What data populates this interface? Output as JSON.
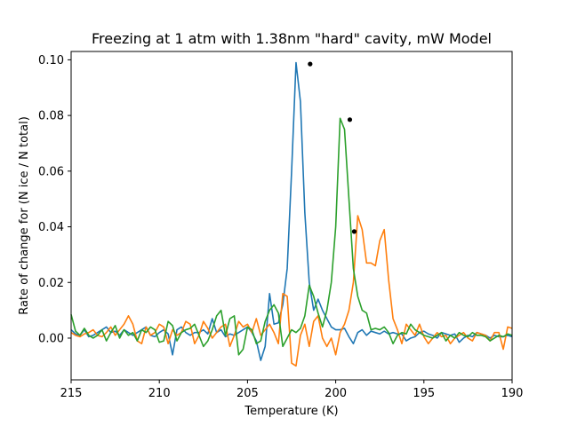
{
  "chart_data": {
    "type": "line",
    "title": "Freezing at 1 atm with 1.38nm \"hard\" cavity, mW Model",
    "xlabel": "Temperature (K)",
    "ylabel": "Rate of change for (N ice / N total)",
    "xlim": [
      215,
      190
    ],
    "ylim": [
      -0.015,
      0.103
    ],
    "x_ticks": [
      215,
      210,
      205,
      200,
      195,
      190
    ],
    "y_ticks": [
      0.0,
      0.02,
      0.04,
      0.06,
      0.08,
      0.1
    ],
    "x_tick_labels": [
      "215",
      "210",
      "205",
      "200",
      "195",
      "190"
    ],
    "y_tick_labels": [
      "0.00",
      "0.02",
      "0.04",
      "0.06",
      "0.08",
      "0.10"
    ],
    "grid": false,
    "legend": "none",
    "series": [
      {
        "color": "#1f77b4",
        "x": [
          215,
          214.75,
          214.5,
          214.25,
          214,
          213.75,
          213.5,
          213.25,
          213,
          212.75,
          212.5,
          212.25,
          212,
          211.75,
          211.5,
          211.25,
          211,
          210.75,
          210.5,
          210.25,
          210,
          209.75,
          209.5,
          209.25,
          209,
          208.75,
          208.5,
          208.25,
          208,
          207.75,
          207.5,
          207.25,
          207,
          206.75,
          206.5,
          206.25,
          206,
          205.75,
          205.5,
          205.25,
          205,
          204.75,
          204.5,
          204.25,
          204,
          203.75,
          203.5,
          203.25,
          203,
          202.75,
          202.5,
          202.25,
          202,
          201.75,
          201.5,
          201.25,
          201,
          200.75,
          200.5,
          200.25,
          200,
          199.75,
          199.5,
          199.25,
          199,
          198.75,
          198.5,
          198.25,
          198,
          197.75,
          197.5,
          197.25,
          197,
          196.75,
          196.5,
          196.25,
          196,
          195.75,
          195.5,
          195.25,
          195,
          194.75,
          194.5,
          194.25,
          194,
          193.75,
          193.5,
          193.25,
          193,
          192.75,
          192.5,
          192.25,
          192,
          191.75,
          191.5,
          191.25,
          191,
          190.75,
          190.5,
          190.25,
          190
        ],
        "y": [
          0.003,
          0.0015,
          0.001,
          0.003,
          0.0005,
          0.001,
          0.002,
          0.003,
          0.004,
          0.002,
          0.0025,
          0.001,
          0.003,
          0.002,
          0.001,
          0.002,
          0.003,
          0.004,
          0.001,
          0.0005,
          0.002,
          0.003,
          0.0015,
          -0.006,
          0.003,
          0.004,
          0.002,
          0.001,
          0.002,
          0.002,
          0.003,
          0.0015,
          0.007,
          0.002,
          0.003,
          0.0005,
          0.0015,
          0.001,
          0.002,
          0.003,
          0.004,
          0.002,
          -0.001,
          -0.008,
          -0.003,
          0.016,
          0.005,
          0.0055,
          0.012,
          0.025,
          0.06,
          0.099,
          0.085,
          0.045,
          0.02,
          0.01,
          0.014,
          0.01,
          0.007,
          0.004,
          0.003,
          0.003,
          0.0035,
          0.0005,
          -0.002,
          0.002,
          0.003,
          0.001,
          0.0025,
          0.002,
          0.0015,
          0.0025,
          0.0015,
          0.002,
          0.0015,
          0.0015,
          -0.001,
          0,
          0.0005,
          0.002,
          0.0025,
          0.0015,
          0.001,
          0,
          0.002,
          0.0015,
          0.001,
          0.0015,
          -0.0015,
          0,
          0.001,
          0.0005,
          0.002,
          0.0015,
          0.001,
          0,
          0.001,
          0.0005,
          0.0005,
          0.001,
          0.0005
        ]
      },
      {
        "color": "#ff7f0e",
        "x": [
          215,
          214.75,
          214.5,
          214.25,
          214,
          213.75,
          213.5,
          213.25,
          213,
          212.75,
          212.5,
          212.25,
          212,
          211.75,
          211.5,
          211.25,
          211,
          210.75,
          210.5,
          210.25,
          210,
          209.75,
          209.5,
          209.25,
          209,
          208.75,
          208.5,
          208.25,
          208,
          207.75,
          207.5,
          207.25,
          207,
          206.75,
          206.5,
          206.25,
          206,
          205.75,
          205.5,
          205.25,
          205,
          204.75,
          204.5,
          204.25,
          204,
          203.75,
          203.5,
          203.25,
          203,
          202.75,
          202.5,
          202.25,
          202,
          201.75,
          201.5,
          201.25,
          201,
          200.75,
          200.5,
          200.25,
          200,
          199.75,
          199.5,
          199.25,
          199,
          198.75,
          198.5,
          198.25,
          198,
          197.75,
          197.5,
          197.25,
          197,
          196.75,
          196.5,
          196.25,
          196,
          195.75,
          195.5,
          195.25,
          195,
          194.75,
          194.5,
          194.25,
          194,
          193.75,
          193.5,
          193.25,
          193,
          192.75,
          192.5,
          192.25,
          192,
          191.75,
          191.5,
          191.25,
          191,
          190.75,
          190.5,
          190.25,
          190
        ],
        "y": [
          0.002,
          0.001,
          0.0005,
          0.0015,
          0.002,
          0.003,
          0.001,
          0.0005,
          0.002,
          0.004,
          0.001,
          0.003,
          0.005,
          0.008,
          0.005,
          -0.001,
          -0.002,
          0.004,
          0.001,
          0.002,
          0.005,
          0.004,
          -0.002,
          0.003,
          0.001,
          0.002,
          0.006,
          0.005,
          -0.002,
          0.001,
          0.006,
          0.0035,
          0,
          0.002,
          0.004,
          0.005,
          -0.003,
          0.001,
          0.006,
          0.004,
          0.005,
          0.002,
          0.007,
          0.001,
          0.003,
          0.005,
          0.002,
          -0.002,
          0.016,
          0.015,
          -0.009,
          -0.01,
          0.001,
          0.005,
          -0.003,
          0.006,
          0.008,
          0,
          -0.003,
          0,
          -0.006,
          0.002,
          0.005,
          0.01,
          0.02,
          0.044,
          0.039,
          0.027,
          0.027,
          0.026,
          0.035,
          0.039,
          0.021,
          0.007,
          0.003,
          -0.002,
          0.005,
          0.003,
          0.001,
          0.005,
          0.0005,
          -0.002,
          0,
          0.002,
          0.0005,
          0.001,
          -0.002,
          0,
          0.001,
          0.002,
          0,
          -0.001,
          0.002,
          0.0015,
          0.001,
          -0.001,
          0.002,
          0.002,
          -0.004,
          0.004,
          0.0035
        ]
      },
      {
        "color": "#2ca02c",
        "x": [
          215,
          214.75,
          214.5,
          214.25,
          214,
          213.75,
          213.5,
          213.25,
          213,
          212.75,
          212.5,
          212.25,
          212,
          211.75,
          211.5,
          211.25,
          211,
          210.75,
          210.5,
          210.25,
          210,
          209.75,
          209.5,
          209.25,
          209,
          208.75,
          208.5,
          208.25,
          208,
          207.75,
          207.5,
          207.25,
          207,
          206.75,
          206.5,
          206.25,
          206,
          205.75,
          205.5,
          205.25,
          205,
          204.75,
          204.5,
          204.25,
          204,
          203.75,
          203.5,
          203.25,
          203,
          202.75,
          202.5,
          202.25,
          202,
          201.75,
          201.5,
          201.25,
          201,
          200.75,
          200.5,
          200.25,
          200,
          199.75,
          199.5,
          199.25,
          199,
          198.75,
          198.5,
          198.25,
          198,
          197.75,
          197.5,
          197.25,
          197,
          196.75,
          196.5,
          196.25,
          196,
          195.75,
          195.5,
          195.25,
          195,
          194.75,
          194.5,
          194.25,
          194,
          193.75,
          193.5,
          193.25,
          193,
          192.75,
          192.5,
          192.25,
          192,
          191.75,
          191.5,
          191.25,
          191,
          190.75,
          190.5,
          190.25,
          190
        ],
        "y": [
          0.0085,
          0.0025,
          0.001,
          0.0035,
          0.001,
          0,
          0.001,
          0.003,
          -0.001,
          0.002,
          0.0045,
          0,
          0.003,
          0.001,
          0.002,
          -0.001,
          0.003,
          0.002,
          0.004,
          0.003,
          -0.0015,
          -0.001,
          0.006,
          0.0045,
          -0.001,
          0.002,
          0.003,
          0.0035,
          0.005,
          0.001,
          -0.003,
          -0.001,
          0.003,
          0.008,
          0.01,
          0.001,
          0.007,
          0.008,
          -0.006,
          -0.004,
          0.004,
          0.003,
          -0.002,
          -0.001,
          0.006,
          0.01,
          0.012,
          0.009,
          -0.003,
          0,
          0.003,
          0.002,
          0.0035,
          0.008,
          0.019,
          0.015,
          0.009,
          0.004,
          0.01,
          0.02,
          0.04,
          0.079,
          0.075,
          0.05,
          0.025,
          0.015,
          0.01,
          0.009,
          0.003,
          0.0035,
          0.003,
          0.004,
          0.002,
          -0.002,
          0.001,
          0.002,
          0.0015,
          0.005,
          0.003,
          0.002,
          0.001,
          0.0005,
          0,
          0.001,
          0.002,
          -0.001,
          0.001,
          0,
          0.002,
          0.001,
          0.0005,
          0.002,
          0.001,
          0.001,
          0.0005,
          -0.001,
          0,
          0.001,
          0.0005,
          0.0015,
          0.001
        ]
      }
    ],
    "markers": {
      "color": "#000000",
      "points": [
        {
          "x": 201.45,
          "y": 0.0985
        },
        {
          "x": 199.2,
          "y": 0.0785
        },
        {
          "x": 198.95,
          "y": 0.0383
        }
      ]
    }
  }
}
